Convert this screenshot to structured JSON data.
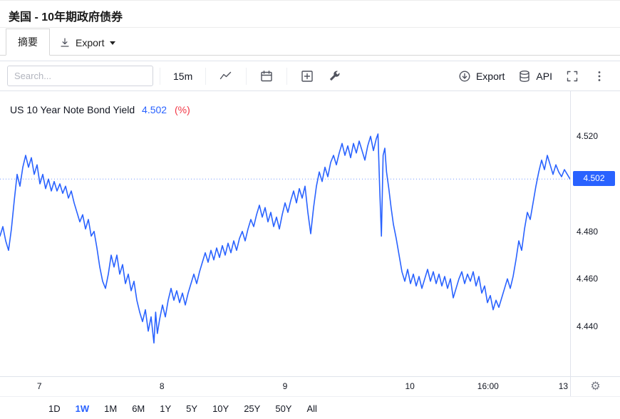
{
  "header": {
    "title": "美国 - 10年期政府债券"
  },
  "tabs": {
    "summary_label": "摘要",
    "export_label": "Export"
  },
  "toolbar": {
    "search_placeholder": "Search...",
    "interval_label": "15m",
    "export_label": "Export",
    "api_label": "API"
  },
  "chart_header": {
    "title": "US 10 Year Note Bond Yield",
    "value": "4.502",
    "unit": "(%)"
  },
  "colors": {
    "line": "#2962FF",
    "value_text": "#2962FF",
    "unit_text": "#F23645",
    "badge_bg": "#2962FF",
    "badge_text": "#FFFFFF",
    "active_range": "#2962FF",
    "axis_text": "#131722"
  },
  "ranges": [
    {
      "label": "1D",
      "active": false
    },
    {
      "label": "1W",
      "active": true
    },
    {
      "label": "1M",
      "active": false
    },
    {
      "label": "6M",
      "active": false
    },
    {
      "label": "1Y",
      "active": false
    },
    {
      "label": "5Y",
      "active": false
    },
    {
      "label": "10Y",
      "active": false
    },
    {
      "label": "25Y",
      "active": false
    },
    {
      "label": "50Y",
      "active": false
    },
    {
      "label": "All",
      "active": false
    }
  ],
  "chart_data": {
    "type": "line",
    "title": "US 10 Year Note Bond Yield (%)",
    "series_name": "US 10 Year Note Bond Yield",
    "unit": "%",
    "interval": "15m",
    "current_value": 4.502,
    "current_label": "4.502",
    "ylim": [
      4.419,
      4.539
    ],
    "y_ticks": [
      4.52,
      4.48,
      4.46,
      4.44
    ],
    "x_ticks": [
      {
        "label": "7",
        "pos": 0.069
      },
      {
        "label": "8",
        "pos": 0.284
      },
      {
        "label": "9",
        "pos": 0.5
      },
      {
        "label": "10",
        "pos": 0.719
      },
      {
        "label": "16:00",
        "pos": 0.856
      },
      {
        "label": "13",
        "pos": 0.988
      }
    ],
    "grid": false,
    "legend": false,
    "points": [
      [
        0.0,
        4.478
      ],
      [
        0.005,
        4.482
      ],
      [
        0.01,
        4.476
      ],
      [
        0.015,
        4.472
      ],
      [
        0.02,
        4.481
      ],
      [
        0.025,
        4.493
      ],
      [
        0.03,
        4.504
      ],
      [
        0.035,
        4.499
      ],
      [
        0.04,
        4.507
      ],
      [
        0.045,
        4.512
      ],
      [
        0.05,
        4.507
      ],
      [
        0.055,
        4.511
      ],
      [
        0.06,
        4.504
      ],
      [
        0.065,
        4.508
      ],
      [
        0.07,
        4.5
      ],
      [
        0.075,
        4.504
      ],
      [
        0.08,
        4.498
      ],
      [
        0.085,
        4.502
      ],
      [
        0.09,
        4.497
      ],
      [
        0.095,
        4.501
      ],
      [
        0.1,
        4.497
      ],
      [
        0.105,
        4.5
      ],
      [
        0.11,
        4.496
      ],
      [
        0.115,
        4.499
      ],
      [
        0.12,
        4.494
      ],
      [
        0.125,
        4.497
      ],
      [
        0.13,
        4.492
      ],
      [
        0.135,
        4.488
      ],
      [
        0.14,
        4.484
      ],
      [
        0.145,
        4.487
      ],
      [
        0.15,
        4.481
      ],
      [
        0.155,
        4.485
      ],
      [
        0.16,
        4.478
      ],
      [
        0.165,
        4.48
      ],
      [
        0.17,
        4.473
      ],
      [
        0.175,
        4.465
      ],
      [
        0.18,
        4.459
      ],
      [
        0.185,
        4.456
      ],
      [
        0.19,
        4.462
      ],
      [
        0.195,
        4.47
      ],
      [
        0.2,
        4.465
      ],
      [
        0.205,
        4.47
      ],
      [
        0.21,
        4.462
      ],
      [
        0.215,
        4.466
      ],
      [
        0.22,
        4.458
      ],
      [
        0.225,
        4.462
      ],
      [
        0.23,
        4.455
      ],
      [
        0.235,
        4.459
      ],
      [
        0.24,
        4.451
      ],
      [
        0.245,
        4.446
      ],
      [
        0.25,
        4.442
      ],
      [
        0.255,
        4.447
      ],
      [
        0.26,
        4.438
      ],
      [
        0.265,
        4.444
      ],
      [
        0.27,
        4.433
      ],
      [
        0.273,
        4.446
      ],
      [
        0.276,
        4.437
      ],
      [
        0.28,
        4.443
      ],
      [
        0.285,
        4.449
      ],
      [
        0.29,
        4.444
      ],
      [
        0.295,
        4.451
      ],
      [
        0.3,
        4.456
      ],
      [
        0.305,
        4.451
      ],
      [
        0.31,
        4.455
      ],
      [
        0.315,
        4.45
      ],
      [
        0.32,
        4.454
      ],
      [
        0.325,
        4.449
      ],
      [
        0.33,
        4.454
      ],
      [
        0.335,
        4.458
      ],
      [
        0.34,
        4.462
      ],
      [
        0.345,
        4.458
      ],
      [
        0.35,
        4.463
      ],
      [
        0.355,
        4.467
      ],
      [
        0.36,
        4.471
      ],
      [
        0.365,
        4.467
      ],
      [
        0.37,
        4.472
      ],
      [
        0.375,
        4.468
      ],
      [
        0.38,
        4.473
      ],
      [
        0.385,
        4.469
      ],
      [
        0.39,
        4.474
      ],
      [
        0.395,
        4.47
      ],
      [
        0.4,
        4.475
      ],
      [
        0.405,
        4.471
      ],
      [
        0.41,
        4.476
      ],
      [
        0.415,
        4.472
      ],
      [
        0.42,
        4.477
      ],
      [
        0.425,
        4.48
      ],
      [
        0.43,
        4.476
      ],
      [
        0.435,
        4.481
      ],
      [
        0.44,
        4.485
      ],
      [
        0.445,
        4.482
      ],
      [
        0.45,
        4.487
      ],
      [
        0.455,
        4.491
      ],
      [
        0.46,
        4.486
      ],
      [
        0.465,
        4.49
      ],
      [
        0.47,
        4.484
      ],
      [
        0.475,
        4.488
      ],
      [
        0.48,
        4.482
      ],
      [
        0.485,
        4.486
      ],
      [
        0.49,
        4.481
      ],
      [
        0.495,
        4.487
      ],
      [
        0.5,
        4.492
      ],
      [
        0.505,
        4.488
      ],
      [
        0.51,
        4.493
      ],
      [
        0.515,
        4.497
      ],
      [
        0.52,
        4.492
      ],
      [
        0.525,
        4.498
      ],
      [
        0.53,
        4.494
      ],
      [
        0.535,
        4.499
      ],
      [
        0.54,
        4.488
      ],
      [
        0.545,
        4.479
      ],
      [
        0.55,
        4.49
      ],
      [
        0.555,
        4.499
      ],
      [
        0.56,
        4.505
      ],
      [
        0.565,
        4.501
      ],
      [
        0.57,
        4.507
      ],
      [
        0.575,
        4.503
      ],
      [
        0.58,
        4.509
      ],
      [
        0.585,
        4.512
      ],
      [
        0.59,
        4.508
      ],
      [
        0.595,
        4.513
      ],
      [
        0.6,
        4.517
      ],
      [
        0.605,
        4.512
      ],
      [
        0.61,
        4.516
      ],
      [
        0.615,
        4.511
      ],
      [
        0.62,
        4.517
      ],
      [
        0.625,
        4.513
      ],
      [
        0.63,
        4.518
      ],
      [
        0.635,
        4.514
      ],
      [
        0.64,
        4.51
      ],
      [
        0.645,
        4.516
      ],
      [
        0.65,
        4.52
      ],
      [
        0.655,
        4.514
      ],
      [
        0.66,
        4.519
      ],
      [
        0.663,
        4.521
      ],
      [
        0.666,
        4.498
      ],
      [
        0.669,
        4.478
      ],
      [
        0.672,
        4.512
      ],
      [
        0.675,
        4.515
      ],
      [
        0.678,
        4.505
      ],
      [
        0.682,
        4.498
      ],
      [
        0.686,
        4.49
      ],
      [
        0.69,
        4.483
      ],
      [
        0.695,
        4.477
      ],
      [
        0.7,
        4.47
      ],
      [
        0.705,
        4.463
      ],
      [
        0.71,
        4.459
      ],
      [
        0.715,
        4.464
      ],
      [
        0.72,
        4.458
      ],
      [
        0.725,
        4.462
      ],
      [
        0.73,
        4.457
      ],
      [
        0.735,
        4.461
      ],
      [
        0.74,
        4.456
      ],
      [
        0.745,
        4.46
      ],
      [
        0.75,
        4.464
      ],
      [
        0.755,
        4.459
      ],
      [
        0.76,
        4.463
      ],
      [
        0.765,
        4.458
      ],
      [
        0.77,
        4.462
      ],
      [
        0.775,
        4.457
      ],
      [
        0.78,
        4.461
      ],
      [
        0.785,
        4.456
      ],
      [
        0.79,
        4.46
      ],
      [
        0.795,
        4.452
      ],
      [
        0.8,
        4.456
      ],
      [
        0.805,
        4.46
      ],
      [
        0.81,
        4.463
      ],
      [
        0.815,
        4.458
      ],
      [
        0.82,
        4.462
      ],
      [
        0.825,
        4.459
      ],
      [
        0.83,
        4.463
      ],
      [
        0.835,
        4.457
      ],
      [
        0.84,
        4.461
      ],
      [
        0.845,
        4.454
      ],
      [
        0.85,
        4.457
      ],
      [
        0.855,
        4.45
      ],
      [
        0.86,
        4.453
      ],
      [
        0.865,
        4.447
      ],
      [
        0.87,
        4.451
      ],
      [
        0.875,
        4.448
      ],
      [
        0.88,
        4.452
      ],
      [
        0.885,
        4.456
      ],
      [
        0.89,
        4.46
      ],
      [
        0.895,
        4.456
      ],
      [
        0.9,
        4.461
      ],
      [
        0.905,
        4.468
      ],
      [
        0.91,
        4.476
      ],
      [
        0.915,
        4.472
      ],
      [
        0.92,
        4.481
      ],
      [
        0.925,
        4.488
      ],
      [
        0.93,
        4.485
      ],
      [
        0.935,
        4.492
      ],
      [
        0.94,
        4.499
      ],
      [
        0.945,
        4.505
      ],
      [
        0.95,
        4.51
      ],
      [
        0.955,
        4.506
      ],
      [
        0.96,
        4.512
      ],
      [
        0.965,
        4.508
      ],
      [
        0.97,
        4.504
      ],
      [
        0.975,
        4.508
      ],
      [
        0.98,
        4.505
      ],
      [
        0.985,
        4.503
      ],
      [
        0.99,
        4.506
      ],
      [
        0.995,
        4.504
      ],
      [
        1.0,
        4.502
      ]
    ]
  }
}
